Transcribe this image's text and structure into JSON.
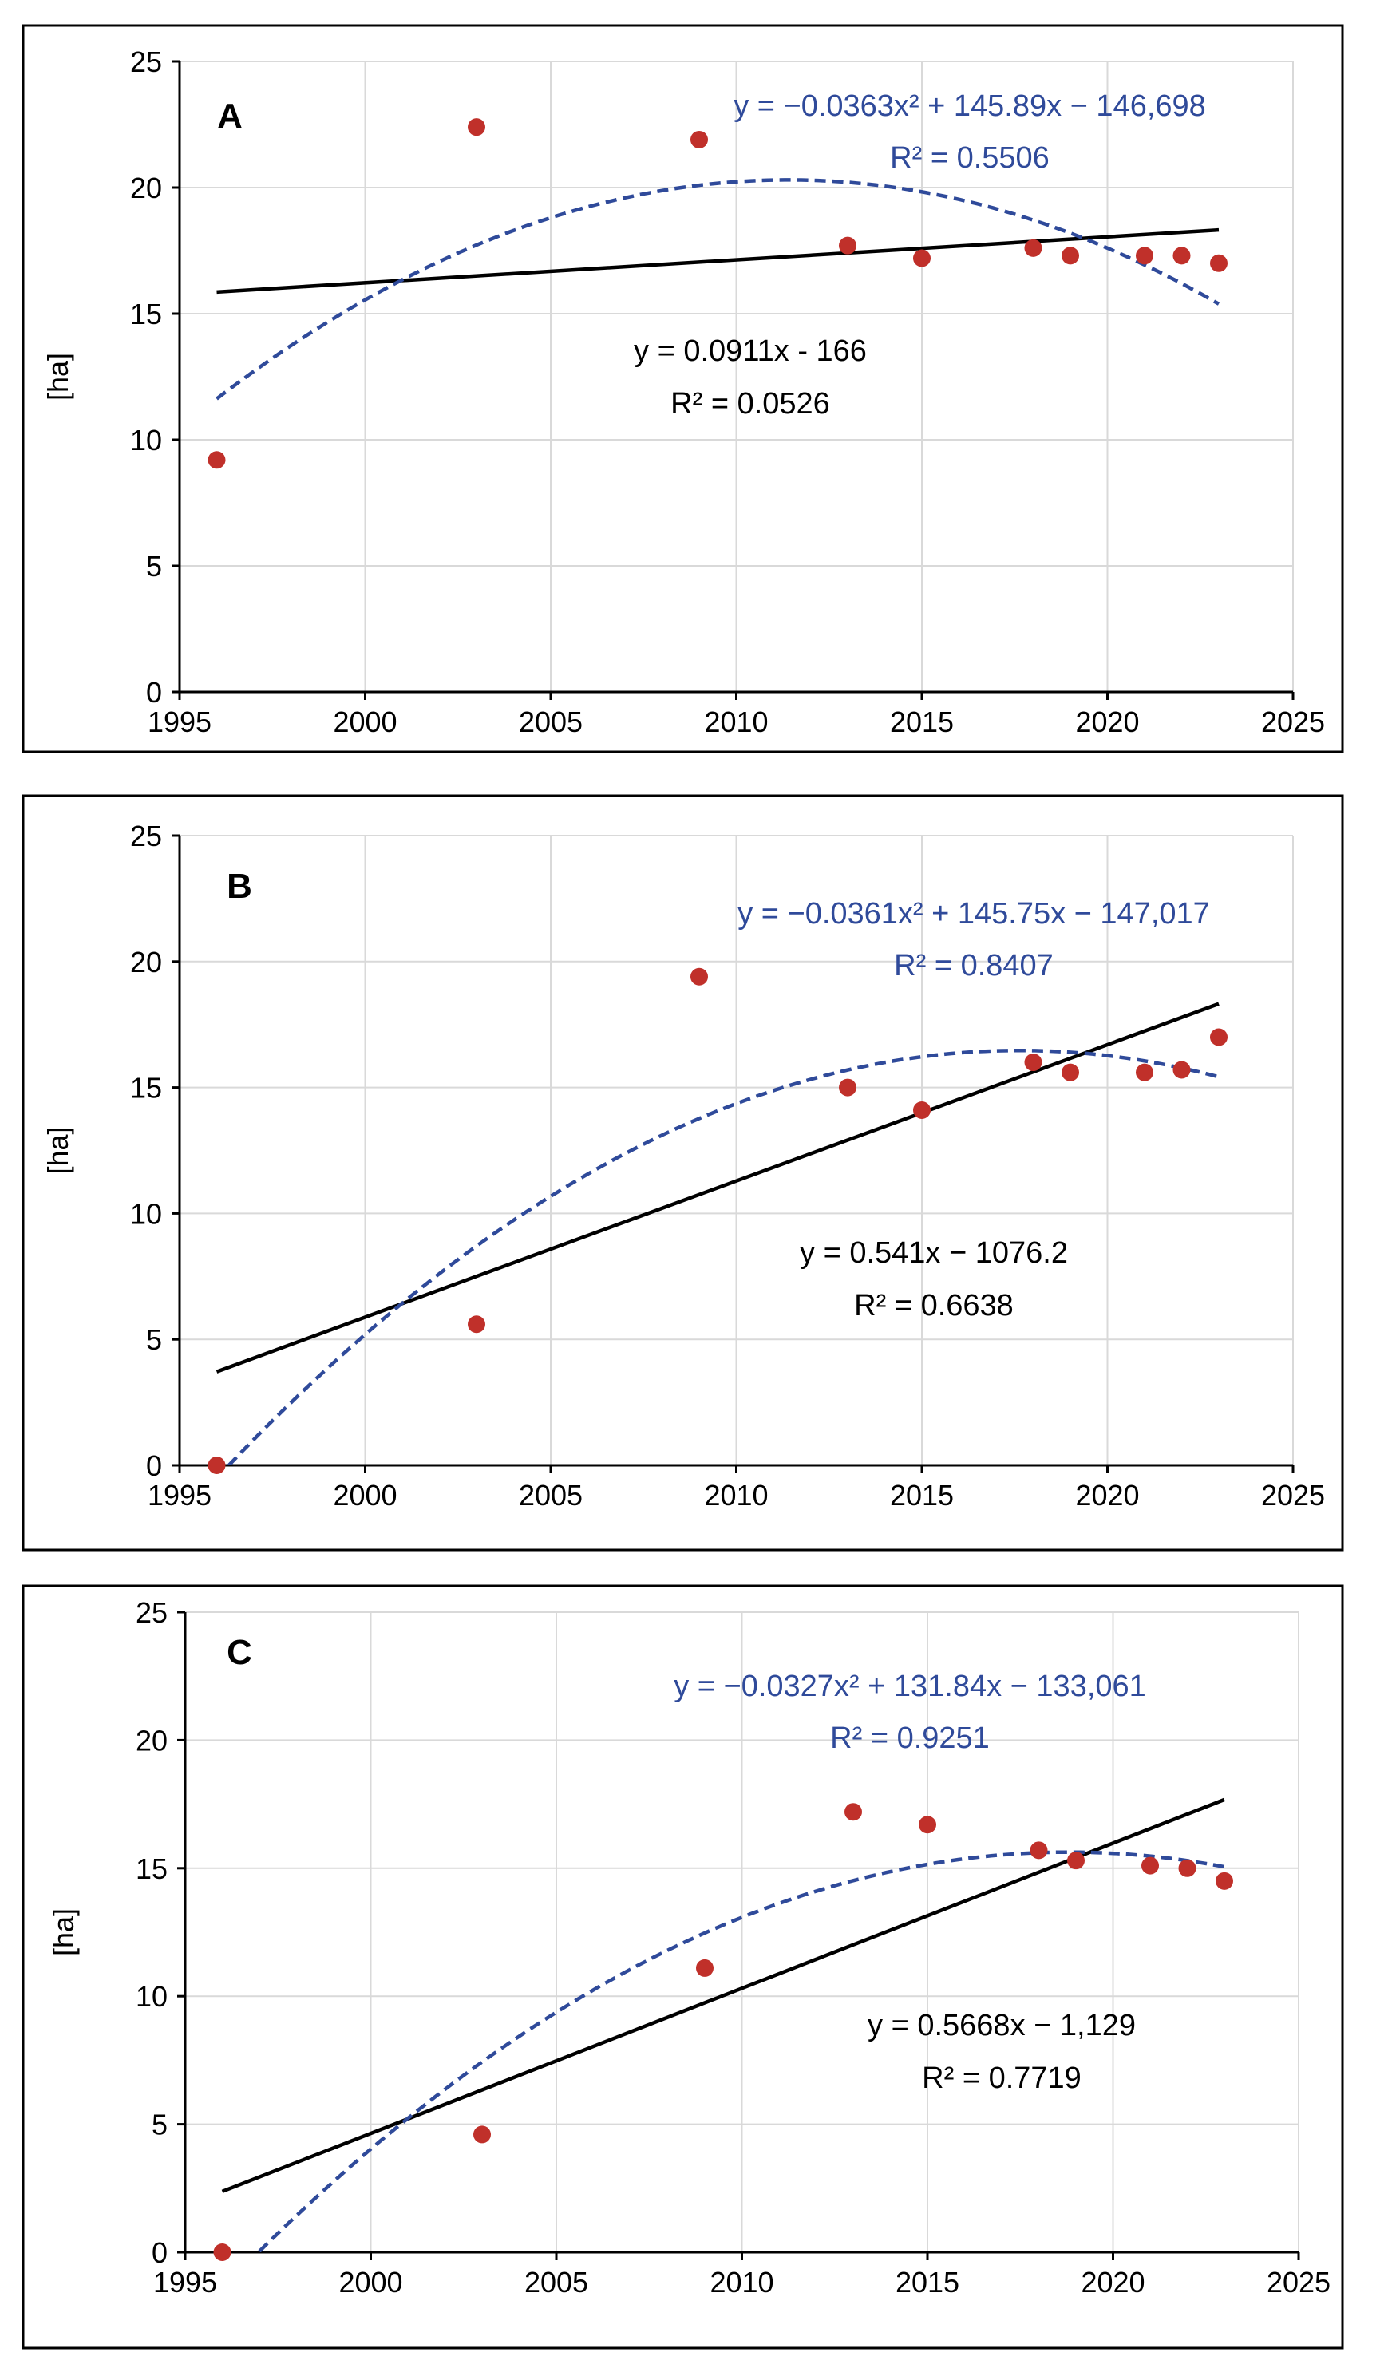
{
  "chart_data": [
    {
      "type": "scatter",
      "panel_label": "A",
      "ylabel": "[ha]",
      "xlabel": "",
      "xlim": [
        1995,
        2025
      ],
      "ylim": [
        0,
        25
      ],
      "x_ticks": [
        "1995",
        "2000",
        "2005",
        "2010",
        "2015",
        "2020",
        "2025"
      ],
      "y_ticks": [
        "0",
        "5",
        "10",
        "15",
        "20",
        "25"
      ],
      "grid": true,
      "points": {
        "x": [
          1996,
          2003,
          2009,
          2013,
          2015,
          2018,
          2019,
          2021,
          2022,
          2023
        ],
        "y": [
          9.2,
          22.4,
          21.9,
          17.7,
          17.2,
          17.6,
          17.3,
          17.3,
          17.3,
          17.0
        ]
      },
      "linear_fit": {
        "slope": 0.0911,
        "intercept": -166,
        "x_range": [
          1996,
          2023
        ],
        "equation": "y = 0.0911x - 166",
        "r2": "R² = 0.0526"
      },
      "poly_fit": {
        "a": -0.0363,
        "b": 145.89,
        "c": -146698,
        "x_range": [
          1996,
          2023
        ],
        "equation": "y = −0.0363x² + 145.89x − 146,698",
        "r2": "R² = 0.5506"
      }
    },
    {
      "type": "scatter",
      "panel_label": "B",
      "ylabel": "[ha]",
      "xlabel": "",
      "xlim": [
        1995,
        2025
      ],
      "ylim": [
        0,
        25
      ],
      "x_ticks": [
        "1995",
        "2000",
        "2005",
        "2010",
        "2015",
        "2020",
        "2025"
      ],
      "y_ticks": [
        "0",
        "5",
        "10",
        "15",
        "20",
        "25"
      ],
      "grid": true,
      "points": {
        "x": [
          1996,
          2003,
          2009,
          2013,
          2015,
          2018,
          2019,
          2021,
          2022,
          2023
        ],
        "y": [
          0.0,
          5.6,
          19.4,
          15.0,
          14.1,
          16.0,
          15.6,
          15.6,
          15.7,
          17.0
        ]
      },
      "linear_fit": {
        "slope": 0.541,
        "intercept": -1076.2,
        "x_range": [
          1996,
          2023
        ],
        "equation": "y = 0.541x − 1076.2",
        "r2": "R² = 0.6638"
      },
      "poly_fit": {
        "a": -0.0361,
        "b": 145.75,
        "c": -147017,
        "x_range": [
          1996,
          2023
        ],
        "equation": "y = −0.0361x² + 145.75x − 147,017",
        "r2": "R² = 0.8407"
      }
    },
    {
      "type": "scatter",
      "panel_label": "C",
      "ylabel": "[ha]",
      "xlabel": "",
      "xlim": [
        1995,
        2025
      ],
      "ylim": [
        0,
        25
      ],
      "x_ticks": [
        "1995",
        "2000",
        "2005",
        "2010",
        "2015",
        "2020",
        "2025"
      ],
      "y_ticks": [
        "0",
        "5",
        "10",
        "15",
        "20",
        "25"
      ],
      "grid": true,
      "points": {
        "x": [
          1996,
          2003,
          2009,
          2013,
          2015,
          2018,
          2019,
          2021,
          2022,
          2023
        ],
        "y": [
          0.0,
          4.6,
          11.1,
          17.2,
          16.7,
          15.7,
          15.3,
          15.1,
          15.0,
          14.5
        ]
      },
      "linear_fit": {
        "slope": 0.5668,
        "intercept": -1129,
        "x_range": [
          1996,
          2023
        ],
        "equation": "y = 0.5668x − 1,129",
        "r2": "R² = 0.7719"
      },
      "poly_fit": {
        "a": -0.0327,
        "b": 131.84,
        "c": -133061,
        "x_range": [
          1997,
          2023
        ],
        "equation": "y = −0.0327x² + 131.84x − 133,061",
        "r2": "R² = 0.9251"
      }
    }
  ],
  "colors": {
    "points": "#c0302a",
    "linear_fit": "#000000",
    "poly_fit": "#2f4a9a",
    "poly_text": "#2f4a9a",
    "linear_text": "#000000",
    "grid": "#d9d9d9"
  }
}
